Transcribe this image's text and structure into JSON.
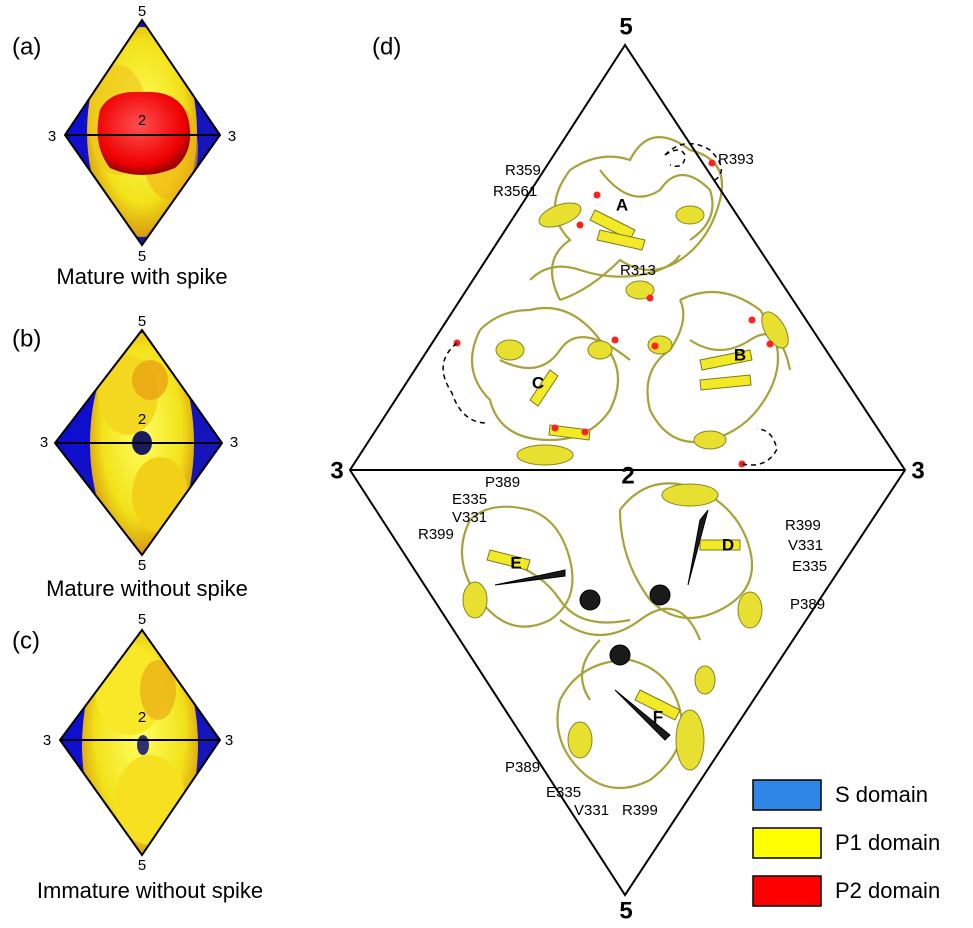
{
  "panels": [
    {
      "label": "(a)",
      "top": "5",
      "left": "3",
      "center": "2",
      "right": "3",
      "bottom": "5",
      "caption": "Mature with spike"
    },
    {
      "label": "(b)",
      "top": "5",
      "left": "3",
      "center": "2",
      "right": "3",
      "bottom": "5",
      "caption": "Mature without spike"
    },
    {
      "label": "(c)",
      "top": "5",
      "left": "3",
      "center": "2",
      "right": "3",
      "bottom": "5",
      "caption": "Immature without spike"
    }
  ],
  "panel_d": {
    "label": "(d)",
    "top": "5",
    "left": "3",
    "center": "2",
    "right": "3",
    "bottom": "5",
    "chains": [
      "A",
      "B",
      "C",
      "D",
      "E",
      "F"
    ],
    "residue_labels": [
      "R359",
      "R3561",
      "R393",
      "R313",
      "P389",
      "E335",
      "V331",
      "R399",
      "R399",
      "V331",
      "E335",
      "P389",
      "P389",
      "E335",
      "V331",
      "R399"
    ]
  },
  "legend": [
    {
      "label": "S domain",
      "color": "#2f86e6"
    },
    {
      "label": "P1 domain",
      "color": "#ffff00"
    },
    {
      "label": "P2 domain",
      "color": "#ff0000"
    }
  ]
}
